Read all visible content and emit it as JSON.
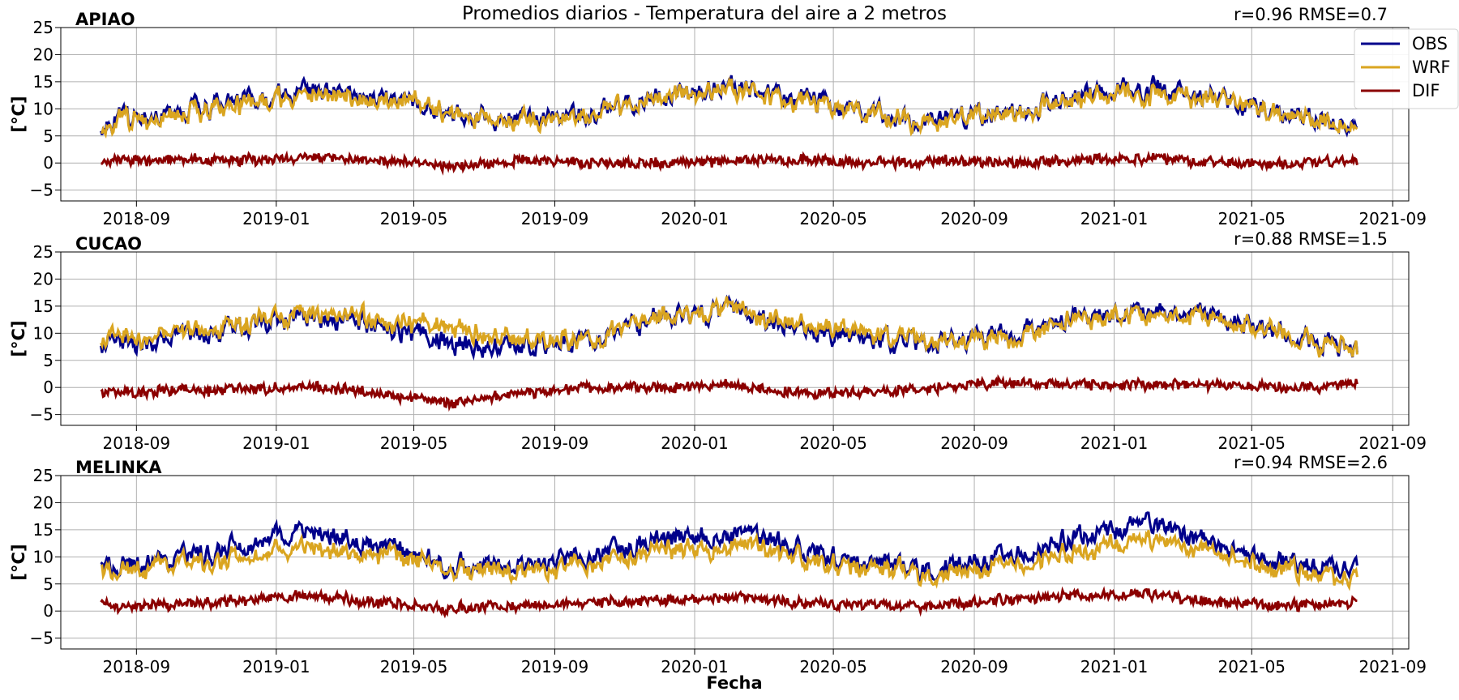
{
  "title": "Promedios diarios - Temperatura del aire a 2 metros",
  "xlabel": "Fecha",
  "ylabel": "[°C]",
  "legend": [
    {
      "name": "OBS",
      "color": "#00008b"
    },
    {
      "name": "WRF",
      "color": "#daa520"
    },
    {
      "name": "DIF",
      "color": "#8b0000"
    }
  ],
  "x_ticks": [
    "2018-09",
    "2019-01",
    "2019-05",
    "2019-09",
    "2020-01",
    "2020-05",
    "2020-09",
    "2021-01",
    "2021-05",
    "2021-09"
  ],
  "y_ticks": [
    "−5",
    "0",
    "5",
    "10",
    "15",
    "20",
    "25"
  ],
  "chart_data": [
    {
      "type": "line",
      "station": "APIAO",
      "stats": "r=0.96  RMSE=0.7",
      "xlim": [
        "2018-06-27",
        "2021-09-15"
      ],
      "ylim": [
        -7,
        25
      ],
      "grid": true,
      "legend_position": "right",
      "x": [
        "2018-08-01",
        "2018-10-01",
        "2018-12-01",
        "2019-02-01",
        "2019-04-01",
        "2019-06-01",
        "2019-08-01",
        "2019-10-01",
        "2019-12-01",
        "2020-02-01",
        "2020-04-01",
        "2020-06-01",
        "2020-08-01",
        "2020-10-01",
        "2020-12-01",
        "2021-02-01",
        "2021-04-01",
        "2021-06-01",
        "2021-08-01"
      ],
      "series": [
        {
          "name": "OBS",
          "values": [
            7.5,
            9.0,
            11.5,
            13.5,
            12.0,
            9.5,
            8.0,
            9.0,
            12.5,
            14.0,
            12.0,
            9.0,
            8.0,
            9.0,
            12.5,
            14.0,
            12.0,
            9.0,
            7.0
          ]
        },
        {
          "name": "WRF",
          "values": [
            7.0,
            8.5,
            11.0,
            12.5,
            11.5,
            10.0,
            7.5,
            9.0,
            12.5,
            13.5,
            11.5,
            9.0,
            7.5,
            9.0,
            12.0,
            13.0,
            12.0,
            9.0,
            6.5
          ]
        },
        {
          "name": "DIF",
          "values": [
            0.5,
            0.5,
            0.5,
            1.0,
            0.5,
            -0.5,
            0.5,
            0.0,
            0.0,
            0.5,
            0.5,
            0.0,
            0.5,
            0.0,
            0.5,
            1.0,
            0.0,
            0.0,
            0.5
          ]
        }
      ]
    },
    {
      "type": "line",
      "station": "CUCAO",
      "stats": "r=0.88  RMSE=1.5",
      "xlim": [
        "2018-06-27",
        "2021-09-15"
      ],
      "ylim": [
        -7,
        25
      ],
      "grid": true,
      "x": [
        "2018-08-01",
        "2018-10-01",
        "2018-12-01",
        "2019-02-01",
        "2019-04-01",
        "2019-06-01",
        "2019-08-01",
        "2019-10-01",
        "2019-12-01",
        "2020-02-01",
        "2020-04-01",
        "2020-06-01",
        "2020-08-01",
        "2020-10-01",
        "2020-12-01",
        "2021-02-01",
        "2021-04-01",
        "2021-06-01",
        "2021-08-01"
      ],
      "series": [
        {
          "name": "OBS",
          "values": [
            8.0,
            9.0,
            11.0,
            13.0,
            11.5,
            8.0,
            7.5,
            9.0,
            13.0,
            14.0,
            11.0,
            8.5,
            8.0,
            10.0,
            13.0,
            14.0,
            13.0,
            10.0,
            6.5
          ]
        },
        {
          "name": "WRF",
          "values": [
            9.0,
            9.5,
            11.5,
            13.5,
            12.5,
            11.0,
            8.5,
            9.0,
            13.0,
            14.0,
            12.0,
            9.5,
            8.0,
            9.0,
            12.5,
            13.5,
            12.5,
            10.0,
            6.0
          ]
        },
        {
          "name": "DIF",
          "values": [
            -1.0,
            -0.5,
            -0.5,
            0.0,
            -1.0,
            -3.0,
            -1.0,
            0.0,
            0.0,
            0.5,
            -1.0,
            -1.0,
            0.0,
            1.0,
            0.5,
            0.5,
            0.5,
            0.0,
            0.5
          ]
        }
      ]
    },
    {
      "type": "line",
      "station": "MELINKA",
      "stats": "r=0.94  RMSE=2.6",
      "xlim": [
        "2018-06-27",
        "2021-09-15"
      ],
      "ylim": [
        -7,
        25
      ],
      "grid": true,
      "x": [
        "2018-08-01",
        "2018-10-01",
        "2018-12-01",
        "2019-02-01",
        "2019-04-01",
        "2019-06-01",
        "2019-08-01",
        "2019-10-01",
        "2019-12-01",
        "2020-02-01",
        "2020-04-01",
        "2020-06-01",
        "2020-08-01",
        "2020-10-01",
        "2020-12-01",
        "2021-02-01",
        "2021-04-01",
        "2021-06-01",
        "2021-08-01"
      ],
      "series": [
        {
          "name": "OBS",
          "values": [
            8.0,
            9.0,
            12.0,
            15.0,
            12.0,
            8.5,
            8.0,
            10.0,
            13.5,
            14.5,
            11.5,
            8.5,
            7.5,
            10.0,
            14.0,
            16.0,
            12.0,
            9.0,
            7.0
          ]
        },
        {
          "name": "WRF",
          "values": [
            7.0,
            8.0,
            10.0,
            12.0,
            10.5,
            8.0,
            7.0,
            8.5,
            11.5,
            12.0,
            10.0,
            7.5,
            6.5,
            8.0,
            11.0,
            13.0,
            10.5,
            8.0,
            5.5
          ]
        },
        {
          "name": "DIF",
          "values": [
            1.0,
            1.0,
            2.0,
            3.0,
            1.5,
            0.5,
            1.0,
            1.5,
            2.0,
            2.5,
            1.5,
            1.0,
            1.0,
            2.0,
            3.0,
            3.0,
            1.5,
            1.0,
            1.5
          ]
        }
      ]
    }
  ]
}
